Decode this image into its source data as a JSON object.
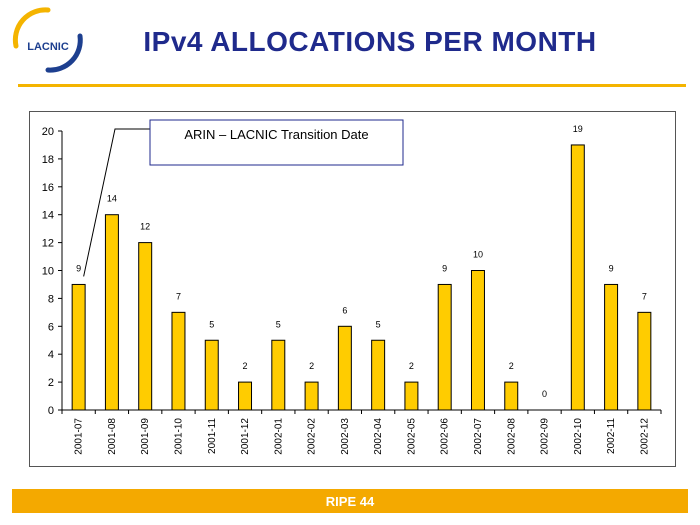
{
  "logo": {
    "text": "LACNIC"
  },
  "header": {
    "title": "IPv4 ALLOCATIONS PER MONTH"
  },
  "footer": {
    "text": "RIPE 44"
  },
  "colors": {
    "bar": "#ffcc00",
    "title": "#1f2a8c",
    "accent": "#f4a900",
    "logo_blue": "#1d3f8f"
  },
  "chart_data": {
    "type": "bar",
    "categories": [
      "2001-07",
      "2001-08",
      "2001-09",
      "2001-10",
      "2001-11",
      "2001-12",
      "2002-01",
      "2002-02",
      "2002-03",
      "2002-04",
      "2002-05",
      "2002-06",
      "2002-07",
      "2002-08",
      "2002-09",
      "2002-10",
      "2002-11",
      "2002-12"
    ],
    "values": [
      9,
      14,
      12,
      7,
      5,
      2,
      5,
      2,
      6,
      5,
      2,
      9,
      10,
      2,
      0,
      19,
      9,
      7
    ],
    "ylim": [
      0,
      20
    ],
    "yticks": [
      0,
      2,
      4,
      6,
      8,
      10,
      12,
      14,
      16,
      18,
      20
    ],
    "grid": false,
    "legend": "none",
    "annotations": [
      {
        "text": "ARIN – LACNIC Transition Date",
        "points_to": "2001-07"
      }
    ]
  }
}
